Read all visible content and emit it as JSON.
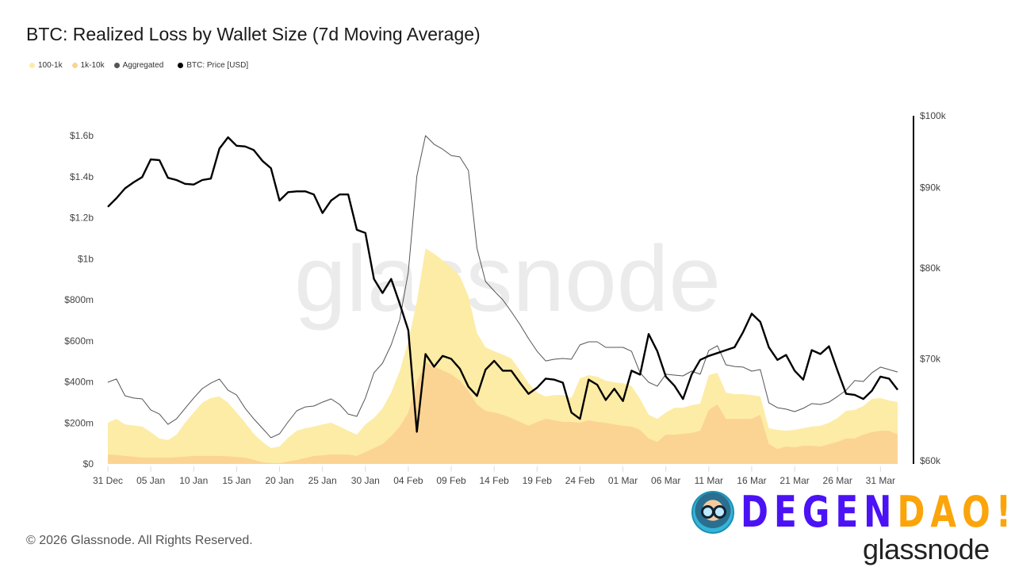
{
  "title": "BTC: Realized Loss by Wallet Size (7d Moving Average)",
  "legend": [
    {
      "label": "100-1k",
      "color": "#fdeca6"
    },
    {
      "label": "1k-10k",
      "color": "#fbd493"
    },
    {
      "label": "Aggregated",
      "color": "#555555"
    },
    {
      "label": "BTC: Price [USD]",
      "color": "#000000"
    }
  ],
  "watermark": "glassnode",
  "footer": "© 2026 Glassnode. All Rights Reserved.",
  "brand": {
    "part1": "DEGEN",
    "part2": "DAO!",
    "glassnode_logo": "glassnode"
  },
  "chart_data": {
    "type": "area",
    "title": "BTC: Realized Loss by Wallet Size (7d Moving Average)",
    "x_tick_labels": [
      "31 Dec",
      "05 Jan",
      "10 Jan",
      "15 Jan",
      "20 Jan",
      "25 Jan",
      "30 Jan",
      "04 Feb",
      "09 Feb",
      "14 Feb",
      "19 Feb",
      "24 Feb",
      "01 Mar",
      "06 Mar",
      "11 Mar",
      "16 Mar",
      "21 Mar",
      "26 Mar",
      "31 Mar"
    ],
    "x_tick_dates": [
      "2025-12-31",
      "2026-01-05",
      "2026-01-10",
      "2026-01-15",
      "2026-01-20",
      "2026-01-25",
      "2026-01-30",
      "2026-02-04",
      "2026-02-09",
      "2026-02-14",
      "2026-02-19",
      "2026-02-24",
      "2026-03-01",
      "2026-03-06",
      "2026-03-11",
      "2026-03-16",
      "2026-03-21",
      "2026-03-26",
      "2026-03-31"
    ],
    "y_left": {
      "unit": "USD",
      "range": [
        0,
        1600000000
      ],
      "tick_values": [
        0,
        200000000,
        400000000,
        600000000,
        800000000,
        1000000000,
        1200000000,
        1400000000,
        1600000000
      ],
      "tick_labels": [
        "$0",
        "$200m",
        "$400m",
        "$600m",
        "$800m",
        "$1b",
        "$1.2b",
        "$1.4b",
        "$1.6b"
      ]
    },
    "y_right": {
      "unit": "USD",
      "scale": "log",
      "range": [
        60000,
        100000
      ],
      "tick_values": [
        60000,
        70000,
        80000,
        90000,
        100000
      ],
      "tick_labels": [
        "$60k",
        "$70k",
        "$80k",
        "$90k",
        "$100k"
      ]
    },
    "grid": false,
    "legend_position": "top-left",
    "x": [
      "2025-12-31",
      "2026-01-01",
      "2026-01-02",
      "2026-01-03",
      "2026-01-04",
      "2026-01-05",
      "2026-01-06",
      "2026-01-07",
      "2026-01-08",
      "2026-01-09",
      "2026-01-10",
      "2026-01-11",
      "2026-01-12",
      "2026-01-13",
      "2026-01-14",
      "2026-01-15",
      "2026-01-16",
      "2026-01-17",
      "2026-01-18",
      "2026-01-19",
      "2026-01-20",
      "2026-01-21",
      "2026-01-22",
      "2026-01-23",
      "2026-01-24",
      "2026-01-25",
      "2026-01-26",
      "2026-01-27",
      "2026-01-28",
      "2026-01-29",
      "2026-01-30",
      "2026-01-31",
      "2026-02-01",
      "2026-02-02",
      "2026-02-03",
      "2026-02-04",
      "2026-02-05",
      "2026-02-06",
      "2026-02-07",
      "2026-02-08",
      "2026-02-09",
      "2026-02-10",
      "2026-02-11",
      "2026-02-12",
      "2026-02-13",
      "2026-02-14",
      "2026-02-15",
      "2026-02-16",
      "2026-02-17",
      "2026-02-18",
      "2026-02-19",
      "2026-02-20",
      "2026-02-21",
      "2026-02-22",
      "2026-02-23",
      "2026-02-24",
      "2026-02-25",
      "2026-02-26",
      "2026-02-27",
      "2026-02-28",
      "2026-03-01",
      "2026-03-02",
      "2026-03-03",
      "2026-03-04",
      "2026-03-05",
      "2026-03-06",
      "2026-03-07",
      "2026-03-08",
      "2026-03-09",
      "2026-03-10",
      "2026-03-11",
      "2026-03-12",
      "2026-03-13",
      "2026-03-14",
      "2026-03-15",
      "2026-03-16",
      "2026-03-17",
      "2026-03-18",
      "2026-03-19",
      "2026-03-20",
      "2026-03-21",
      "2026-03-22",
      "2026-03-23",
      "2026-03-24",
      "2026-03-25",
      "2026-03-26",
      "2026-03-27",
      "2026-03-28",
      "2026-03-29",
      "2026-03-30",
      "2026-03-31",
      "2026-04-01",
      "2026-04-02"
    ],
    "series": [
      {
        "name": "100-1k",
        "type": "area",
        "axis": "left",
        "unit": "USD millions",
        "color": "#fdeca6",
        "values": [
          201,
          220,
          193,
          188,
          182,
          155,
          124,
          116,
          143,
          201,
          251,
          298,
          321,
          329,
          298,
          251,
          201,
          147,
          108,
          77,
          85,
          128,
          162,
          174,
          182,
          193,
          201,
          182,
          162,
          143,
          193,
          224,
          271,
          348,
          452,
          599,
          792,
          1051,
          1024,
          993,
          959,
          916,
          819,
          638,
          568,
          549,
          533,
          514,
          456,
          394,
          348,
          329,
          336,
          336,
          321,
          417,
          433,
          425,
          406,
          398,
          394,
          379,
          317,
          240,
          220,
          251,
          274,
          274,
          286,
          294,
          433,
          444,
          348,
          340,
          340,
          336,
          329,
          174,
          166,
          162,
          166,
          174,
          182,
          186,
          201,
          224,
          259,
          263,
          282,
          317,
          321,
          309,
          301
        ]
      },
      {
        "name": "1k-10k",
        "type": "area",
        "axis": "left",
        "unit": "USD millions",
        "color": "#fbd493",
        "values": [
          46,
          44,
          39,
          35,
          31,
          31,
          31,
          31,
          33,
          36,
          39,
          39,
          39,
          39,
          37,
          34,
          31,
          20,
          8,
          5,
          4,
          12,
          19,
          29,
          39,
          42,
          46,
          46,
          46,
          39,
          58,
          77,
          97,
          135,
          182,
          251,
          400,
          495,
          475,
          456,
          437,
          406,
          356,
          290,
          259,
          251,
          240,
          224,
          205,
          186,
          205,
          220,
          213,
          205,
          205,
          201,
          213,
          205,
          201,
          193,
          186,
          182,
          166,
          124,
          108,
          143,
          143,
          147,
          151,
          162,
          263,
          290,
          220,
          220,
          220,
          220,
          240,
          97,
          73,
          85,
          81,
          89,
          89,
          85,
          97,
          108,
          124,
          124,
          143,
          155,
          162,
          162,
          143
        ]
      },
      {
        "name": "Aggregated",
        "type": "line",
        "axis": "left",
        "unit": "USD millions",
        "color": "#555555",
        "values": [
          398,
          414,
          332,
          321,
          317,
          263,
          243,
          193,
          220,
          271,
          321,
          367,
          394,
          414,
          359,
          336,
          271,
          220,
          174,
          128,
          147,
          205,
          259,
          278,
          282,
          301,
          317,
          290,
          243,
          232,
          321,
          444,
          491,
          580,
          703,
          935,
          1403,
          1600,
          1558,
          1534,
          1503,
          1496,
          1430,
          1051,
          889,
          843,
          800,
          742,
          680,
          611,
          549,
          502,
          510,
          514,
          510,
          580,
          595,
          595,
          568,
          568,
          568,
          549,
          444,
          398,
          379,
          437,
          433,
          429,
          452,
          437,
          553,
          576,
          483,
          475,
          472,
          452,
          460,
          298,
          274,
          267,
          255,
          271,
          294,
          290,
          301,
          329,
          359,
          406,
          402,
          444,
          472,
          460,
          448
        ]
      },
      {
        "name": "BTC: Price [USD]",
        "type": "line",
        "axis": "right",
        "unit": "USD thousands",
        "color": "#000000",
        "values": [
          87.5,
          88.6,
          89.9,
          90.7,
          91.4,
          93.8,
          93.7,
          91.3,
          91.0,
          90.5,
          90.4,
          91.0,
          91.2,
          95.3,
          96.9,
          95.7,
          95.6,
          95.1,
          93.6,
          92.6,
          88.3,
          89.4,
          89.5,
          89.5,
          89.1,
          86.7,
          88.3,
          89.1,
          89.1,
          84.6,
          84.2,
          78.7,
          77.1,
          78.7,
          75.9,
          73.0,
          62.9,
          70.5,
          69.2,
          70.3,
          70.0,
          69.0,
          67.2,
          66.3,
          68.9,
          69.8,
          68.8,
          68.8,
          67.6,
          66.5,
          67.1,
          68.0,
          67.9,
          67.6,
          64.7,
          64.1,
          67.9,
          67.4,
          65.9,
          67.0,
          65.8,
          68.8,
          68.4,
          72.6,
          70.8,
          68.2,
          67.3,
          66.0,
          68.4,
          69.9,
          70.3,
          70.6,
          70.9,
          71.2,
          72.8,
          74.8,
          73.9,
          71.2,
          69.9,
          70.4,
          68.8,
          67.9,
          70.9,
          70.5,
          71.3,
          68.8,
          66.5,
          66.4,
          66.0,
          66.8,
          68.2,
          68.0,
          66.9
        ]
      }
    ]
  }
}
